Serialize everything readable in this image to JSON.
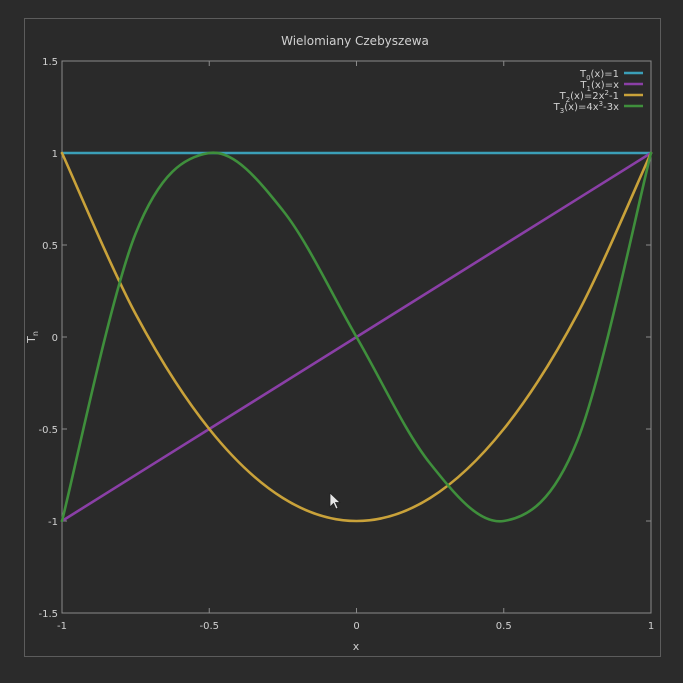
{
  "chart_data": {
    "type": "line",
    "title": "Wielomiany Czebyszewa",
    "xlabel": "x",
    "ylabel": "T",
    "ylabel_sub": "n",
    "xlim": [
      -1,
      1
    ],
    "ylim": [
      -1.5,
      1.5
    ],
    "xticks": [
      -1,
      -0.5,
      0,
      0.5,
      1
    ],
    "xtick_labels": [
      "-1",
      "-0.5",
      "0",
      "0.5",
      "1"
    ],
    "yticks": [
      -1.5,
      -1,
      -0.5,
      0,
      0.5,
      1,
      1.5
    ],
    "ytick_labels": [
      "-1.5",
      "-1",
      "-0.5",
      "0",
      "0.5",
      "1",
      "1.5"
    ],
    "grid": false,
    "legend_position": "top-right",
    "series": [
      {
        "name": "T0(x)=1",
        "legend": {
          "pre": "T",
          "sub": "0",
          "post": "(x)=1",
          "sup": "",
          "tail": ""
        },
        "color": "#3b9fb8",
        "x": [
          -1,
          -0.5,
          0,
          0.5,
          1
        ],
        "y": [
          1,
          1,
          1,
          1,
          1
        ]
      },
      {
        "name": "T1(x)=x",
        "legend": {
          "pre": "T",
          "sub": "1",
          "post": "(x)=x",
          "sup": "",
          "tail": ""
        },
        "color": "#8a3fa6",
        "x": [
          -1,
          -0.5,
          0,
          0.5,
          1
        ],
        "y": [
          -1,
          -0.5,
          0,
          0.5,
          1
        ]
      },
      {
        "name": "T2(x)=2x^2-1",
        "legend": {
          "pre": "T",
          "sub": "2",
          "post": "(x)=2x",
          "sup": "2",
          "tail": "-1"
        },
        "color": "#c9a23a",
        "x": [
          -1,
          -0.75,
          -0.5,
          -0.25,
          0,
          0.25,
          0.5,
          0.75,
          1
        ],
        "y": [
          1,
          0.125,
          -0.5,
          -0.875,
          -1,
          -0.875,
          -0.5,
          0.125,
          1
        ]
      },
      {
        "name": "T3(x)=4x^3-3x",
        "legend": {
          "pre": "T",
          "sub": "3",
          "post": "(x)=4x",
          "sup": "3",
          "tail": "-3x"
        },
        "color": "#3f8f3c",
        "x": [
          -1,
          -0.75,
          -0.5,
          -0.25,
          0,
          0.25,
          0.5,
          0.75,
          1
        ],
        "y": [
          -1,
          0.5625,
          1,
          0.6875,
          0,
          -0.6875,
          -1,
          -0.5625,
          1
        ]
      }
    ]
  },
  "colors": {
    "background": "#2b2b2b",
    "axes": "#8a8a8a",
    "text": "#d0d0d0"
  },
  "icons": {
    "cursor": "mouse-pointer-icon"
  }
}
